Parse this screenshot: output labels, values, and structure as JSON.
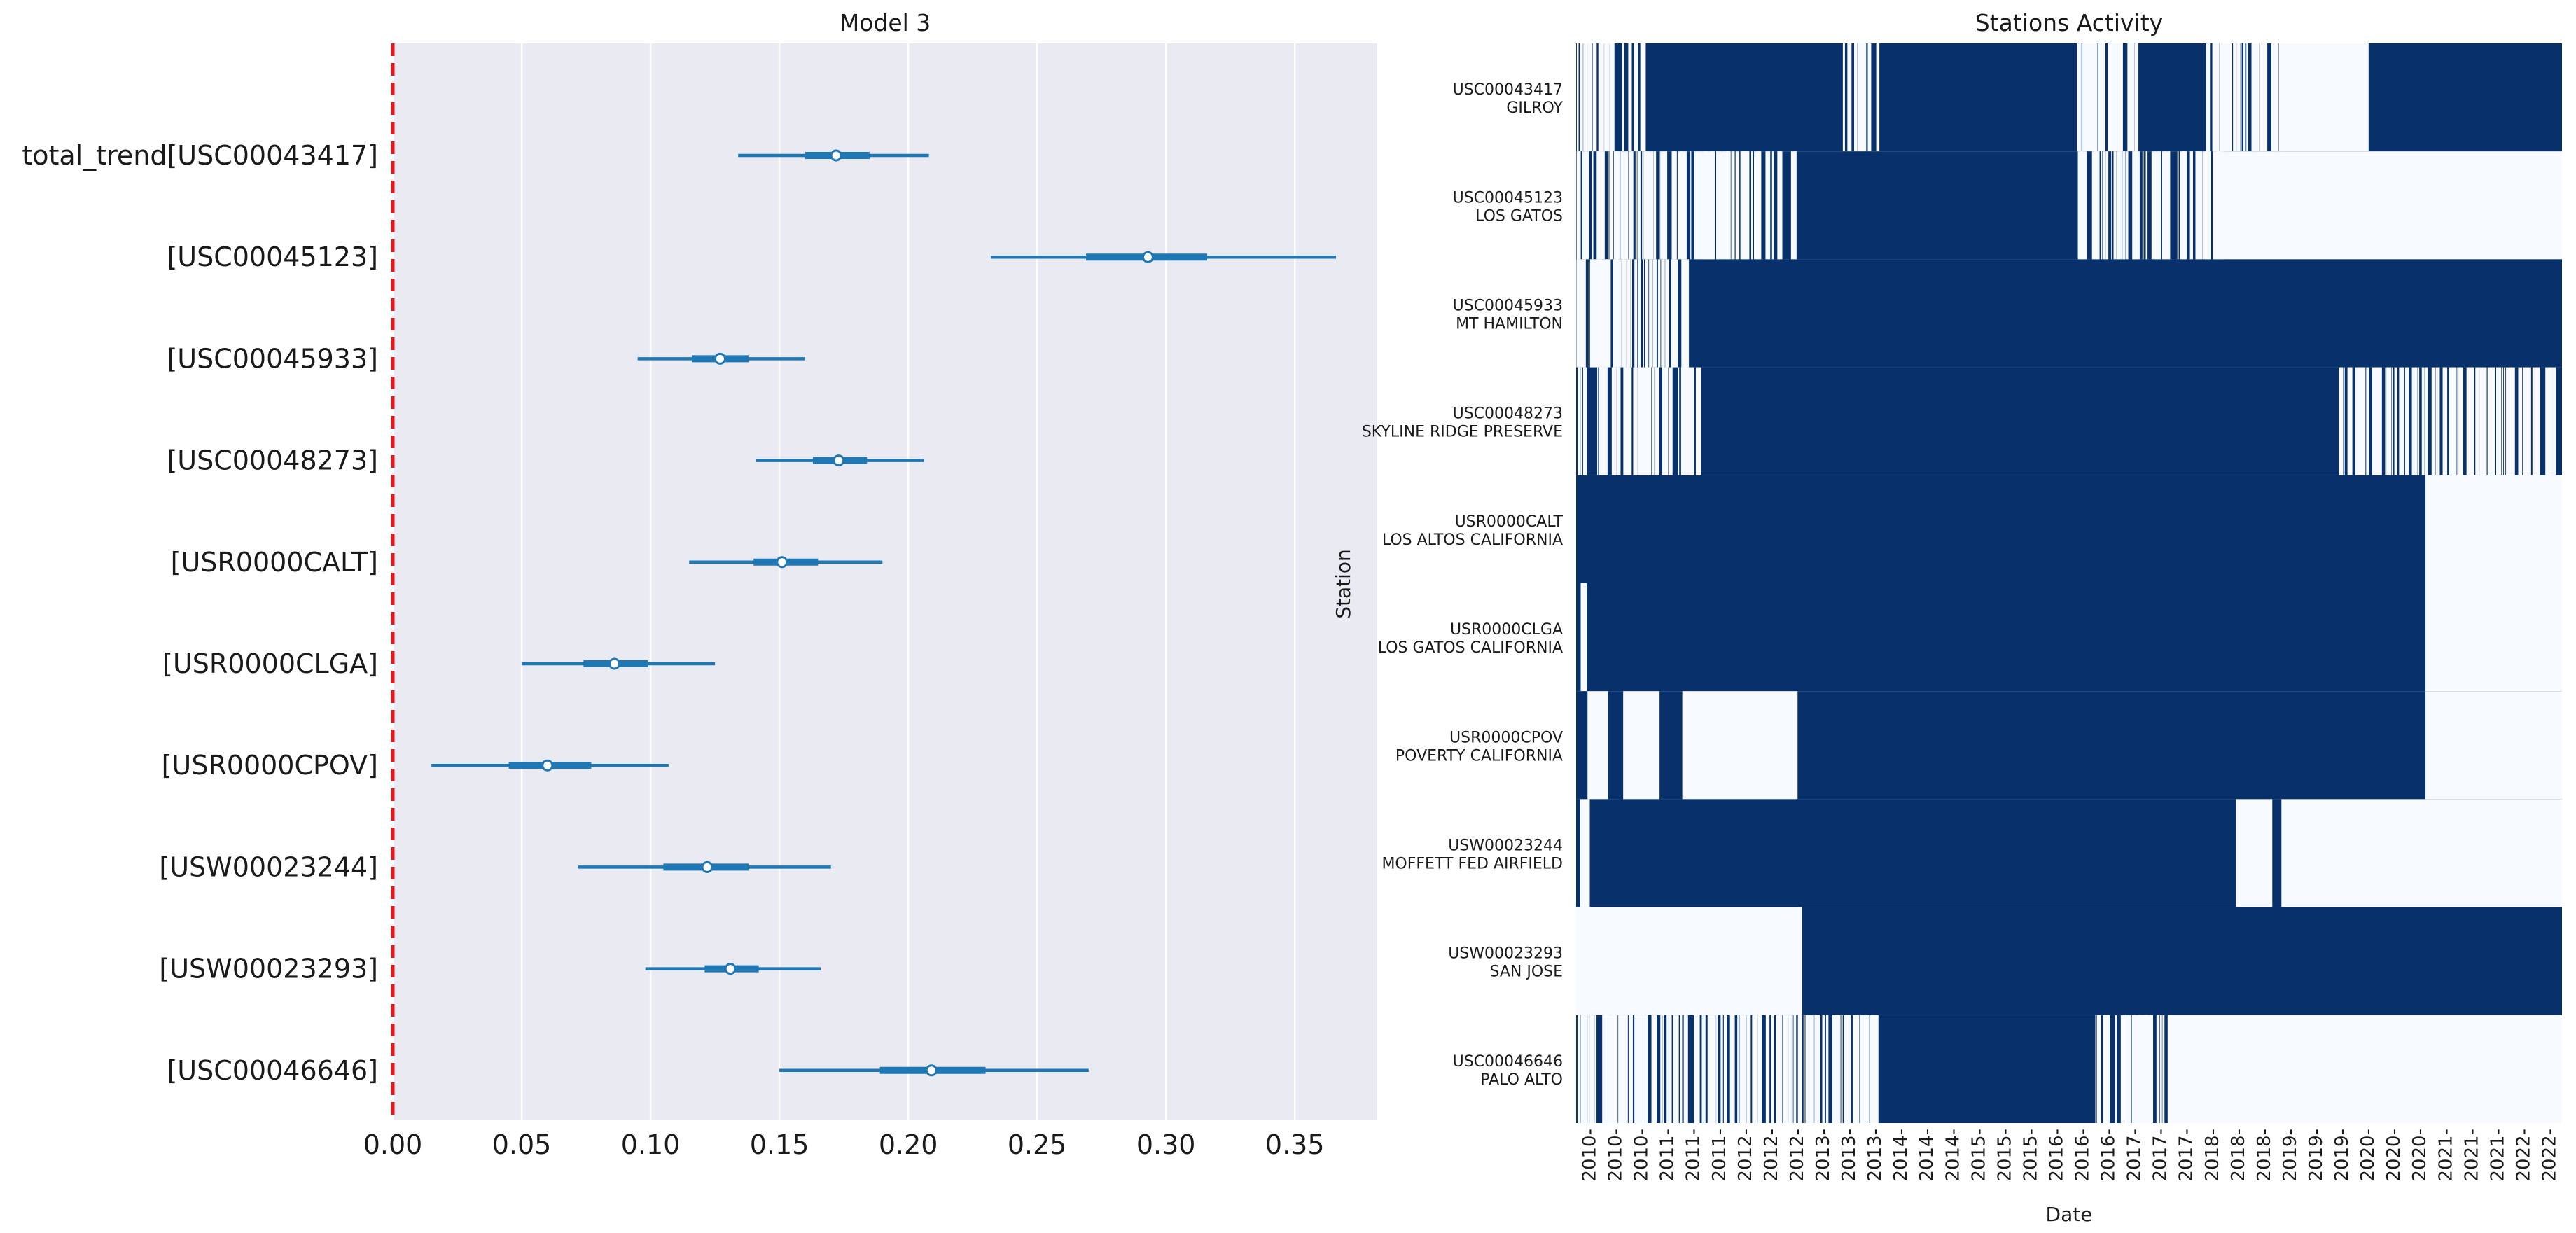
{
  "chart_data": [
    {
      "type": "forest",
      "title": "Model 3",
      "xlabel": "",
      "ylabel": "",
      "xlim": [
        0,
        0.382
      ],
      "xticks": [
        "0.00",
        "0.05",
        "0.10",
        "0.15",
        "0.20",
        "0.25",
        "0.30",
        "0.35"
      ],
      "reference_line": {
        "x": 0.0,
        "color": "#e31a1c",
        "style": "dashed"
      },
      "grid": true,
      "colors": {
        "background": "#eaeaf2",
        "interval": "#1f77b4",
        "grid": "#ffffff"
      },
      "rows": [
        {
          "label": "total_trend[USC00043417]",
          "mean": 0.172,
          "hdi_94": [
            0.134,
            0.208
          ],
          "iqr": [
            0.16,
            0.185
          ]
        },
        {
          "label": "[USC00045123]",
          "mean": 0.293,
          "hdi_94": [
            0.232,
            0.366
          ],
          "iqr": [
            0.269,
            0.316
          ]
        },
        {
          "label": "[USC00045933]",
          "mean": 0.127,
          "hdi_94": [
            0.095,
            0.16
          ],
          "iqr": [
            0.116,
            0.138
          ]
        },
        {
          "label": "[USC00048273]",
          "mean": 0.173,
          "hdi_94": [
            0.141,
            0.206
          ],
          "iqr": [
            0.163,
            0.184
          ]
        },
        {
          "label": "[USR0000CALT]",
          "mean": 0.151,
          "hdi_94": [
            0.115,
            0.19
          ],
          "iqr": [
            0.14,
            0.165
          ]
        },
        {
          "label": "[USR0000CLGA]",
          "mean": 0.086,
          "hdi_94": [
            0.05,
            0.125
          ],
          "iqr": [
            0.074,
            0.099
          ]
        },
        {
          "label": "[USR0000CPOV]",
          "mean": 0.06,
          "hdi_94": [
            0.015,
            0.107
          ],
          "iqr": [
            0.045,
            0.077
          ]
        },
        {
          "label": "[USW00023244]",
          "mean": 0.122,
          "hdi_94": [
            0.072,
            0.17
          ],
          "iqr": [
            0.105,
            0.138
          ]
        },
        {
          "label": "[USW00023293]",
          "mean": 0.131,
          "hdi_94": [
            0.098,
            0.166
          ],
          "iqr": [
            0.121,
            0.142
          ]
        },
        {
          "label": "[USC00046646]",
          "mean": 0.209,
          "hdi_94": [
            0.15,
            0.27
          ],
          "iqr": [
            0.189,
            0.23
          ]
        }
      ]
    },
    {
      "type": "heatmap",
      "title": "Stations Activity",
      "xlabel": "Date",
      "ylabel": "Station",
      "x_range": [
        "2010-01",
        "2022-12"
      ],
      "xticks": [
        "2010-",
        "2010-",
        "2010-",
        "2011-",
        "2011-",
        "2011-",
        "2012-",
        "2012-",
        "2012-",
        "2013-",
        "2013-",
        "2013-",
        "2014-",
        "2014-",
        "2014-",
        "2015-",
        "2015-",
        "2015-",
        "2016-",
        "2016-",
        "2016-",
        "2017-",
        "2017-",
        "2017-",
        "2018-",
        "2018-",
        "2018-",
        "2019-",
        "2019-",
        "2019-",
        "2020-",
        "2020-",
        "2020-",
        "2021-",
        "2021-",
        "2021-",
        "2022-",
        "2022-"
      ],
      "values_legend": {
        "active": 1,
        "missing": 0
      },
      "colors": {
        "active": "#08306b",
        "missing": "#f7fbff"
      },
      "rows": [
        {
          "station": "USC00043417",
          "name": "GILROY",
          "inactive_periods": [
            [
              2019.32,
              2020.45
            ]
          ],
          "sparse_gap_periods": [
            [
              2010.0,
              2010.9
            ],
            [
              2013.5,
              2014.0
            ],
            [
              2016.6,
              2017.4
            ],
            [
              2018.3,
              2019.3
            ]
          ]
        },
        {
          "station": "USC00045123",
          "name": "LOS GATOS",
          "inactive_periods": [
            [
              2018.5,
              2023.0
            ]
          ],
          "sparse_gap_periods": [
            [
              2010.0,
              2012.9
            ],
            [
              2016.6,
              2018.5
            ]
          ]
        },
        {
          "station": "USC00045933",
          "name": "MT HAMILTON",
          "inactive_periods": [],
          "sparse_gap_periods": [
            [
              2010.0,
              2011.5
            ]
          ]
        },
        {
          "station": "USC00048273",
          "name": "SKYLINE RIDGE PRESERVE",
          "inactive_periods": [],
          "sparse_gap_periods": [
            [
              2010.0,
              2011.6
            ],
            [
              2020.0,
              2022.9
            ]
          ]
        },
        {
          "station": "USR0000CALT",
          "name": "LOS ALTOS CALIFORNIA",
          "inactive_periods": [
            [
              2021.2,
              2023.0
            ]
          ],
          "sparse_gap_periods": []
        },
        {
          "station": "USR0000CLGA",
          "name": "LOS GATOS CALIFORNIA",
          "inactive_periods": [
            [
              2010.06,
              2010.14
            ],
            [
              2021.2,
              2023.0
            ]
          ],
          "sparse_gap_periods": []
        },
        {
          "station": "USR0000CPOV",
          "name": "POVERTY CALIFORNIA",
          "inactive_periods": [
            [
              2010.15,
              2010.42
            ],
            [
              2010.62,
              2011.1
            ],
            [
              2011.4,
              2012.92
            ],
            [
              2021.2,
              2023.0
            ]
          ],
          "sparse_gap_periods": []
        },
        {
          "station": "USW00023244",
          "name": "MOFFETT FED AIRFIELD",
          "inactive_periods": [
            [
              2010.05,
              2010.18
            ],
            [
              2018.7,
              2019.18
            ],
            [
              2019.3,
              2023.0
            ]
          ],
          "sparse_gap_periods": []
        },
        {
          "station": "USW00023293",
          "name": "SAN JOSE",
          "inactive_periods": [
            [
              2010.0,
              2012.98
            ]
          ],
          "sparse_gap_periods": []
        },
        {
          "station": "USC00046646",
          "name": "PALO ALTO",
          "inactive_periods": [
            [
              2017.8,
              2023.0
            ]
          ],
          "sparse_gap_periods": [
            [
              2010.0,
              2014.0
            ],
            [
              2016.8,
              2017.8
            ]
          ]
        }
      ]
    }
  ]
}
